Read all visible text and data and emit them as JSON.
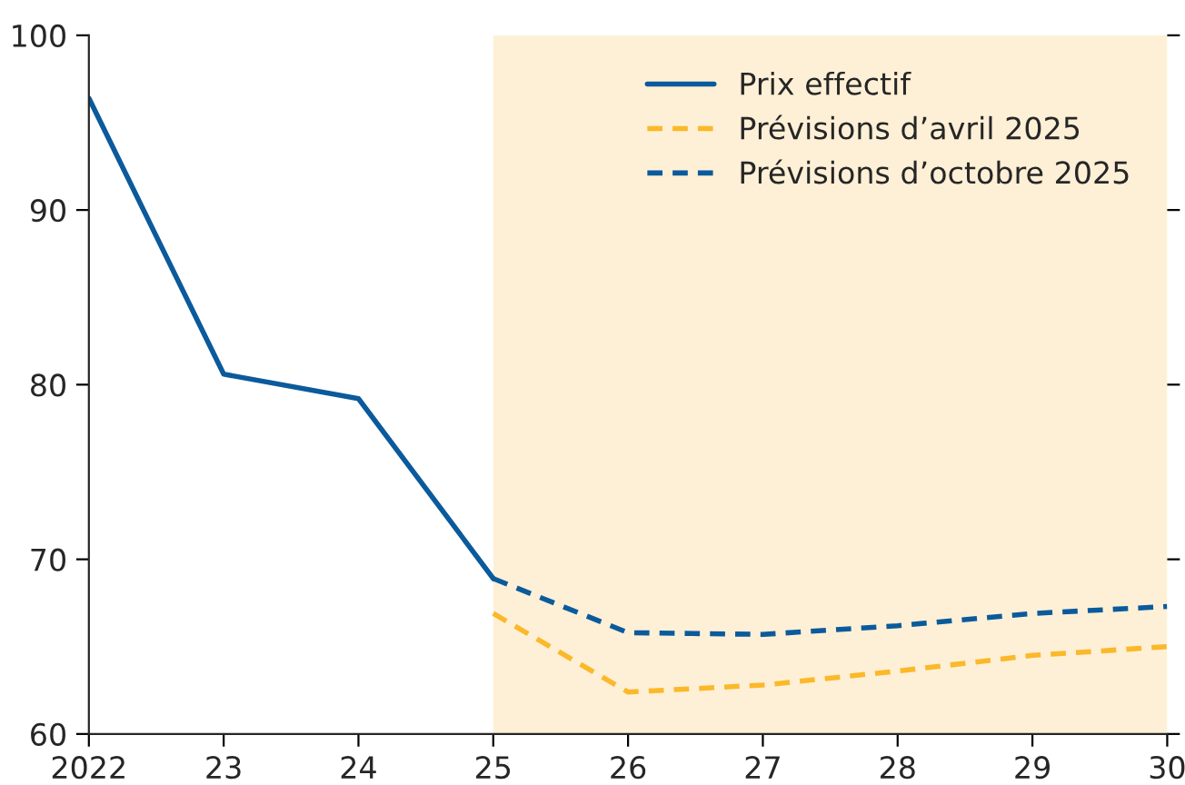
{
  "chart_data": {
    "type": "line",
    "x": [
      2022,
      2023,
      2024,
      2025,
      2026,
      2027,
      2028,
      2029,
      2030
    ],
    "series": [
      {
        "name": "Prix effectif",
        "color": "#0b5a9c",
        "line_style": "solid",
        "values": [
          96.4,
          80.6,
          79.2,
          68.9,
          null,
          null,
          null,
          null,
          null
        ]
      },
      {
        "name": "Prévisions d’avril 2025",
        "color": "#fbb829",
        "line_style": "dashed",
        "values": [
          null,
          null,
          null,
          66.9,
          62.4,
          62.8,
          63.6,
          64.5,
          65.0
        ]
      },
      {
        "name": "Prévisions d’octobre 2025",
        "color": "#0b5a9c",
        "line_style": "dashed",
        "values": [
          null,
          null,
          null,
          68.9,
          65.8,
          65.7,
          66.2,
          66.9,
          67.3
        ]
      }
    ],
    "xlim": [
      2022,
      2030
    ],
    "xticks": [
      2022,
      {
        "value": 2023,
        "label": "23"
      },
      {
        "value": 2024,
        "label": "24"
      },
      {
        "value": 2025,
        "label": "25"
      },
      {
        "value": 2026,
        "label": "26"
      },
      {
        "value": 2027,
        "label": "27"
      },
      {
        "value": 2028,
        "label": "28"
      },
      {
        "value": 2029,
        "label": "29"
      },
      {
        "value": 2030,
        "label": "30"
      }
    ],
    "ylim": [
      60,
      100
    ],
    "yticks": [
      60,
      70,
      80,
      90,
      100
    ],
    "bands": [
      {
        "axis": "x",
        "from": 2025,
        "to": 2030,
        "color": "#fdf0d6"
      }
    ],
    "grid": false,
    "legend": "top right",
    "marker": "none"
  }
}
